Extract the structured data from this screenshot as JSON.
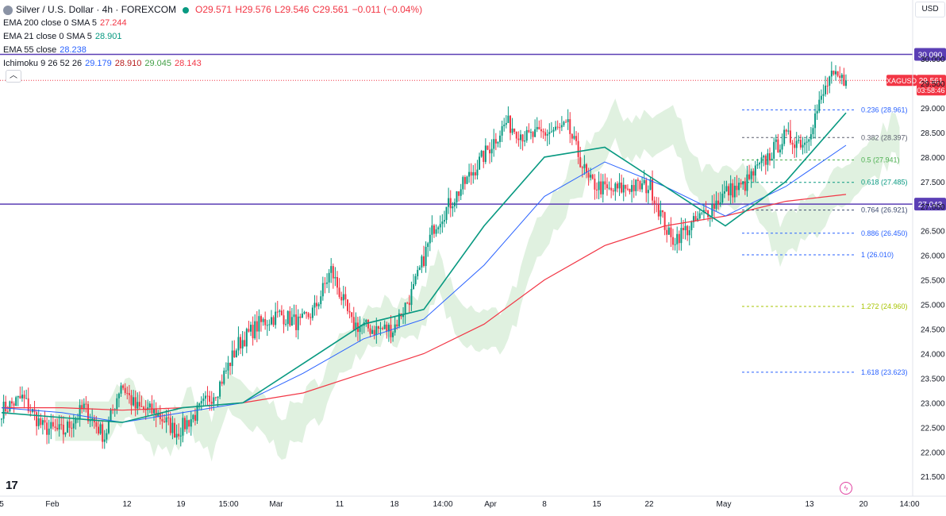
{
  "header": {
    "symbol_title": "Silver / U.S. Dollar · 4h · FOREXCOM",
    "ohlc": {
      "o": "O29.571",
      "h": "H29.576",
      "l": "L29.546",
      "c": "C29.561",
      "chg": "−0.011 (−0.04%)"
    },
    "indicators": [
      {
        "label": "EMA 200 close 0 SMA 5",
        "values": [
          "27.244"
        ],
        "colors": [
          "#f23645"
        ]
      },
      {
        "label": "EMA 21 close 0 SMA 5",
        "values": [
          "28.901"
        ],
        "colors": [
          "#089981"
        ]
      },
      {
        "label": "EMA 55 close",
        "values": [
          "28.238"
        ],
        "colors": [
          "#2962ff"
        ]
      },
      {
        "label": "Ichimoku 9 26 52 26",
        "values": [
          "29.179",
          "28.910",
          "29.045",
          "28.143"
        ],
        "colors": [
          "#2962ff",
          "#b71c1c",
          "#43a047",
          "#f23645"
        ]
      }
    ]
  },
  "currency_button": "USD",
  "collapse_icon": "chevron-up-icon",
  "price_axis": {
    "ticks": [
      "30.000",
      "29.500",
      "29.000",
      "28.500",
      "28.000",
      "27.500",
      "27.000",
      "26.500",
      "26.000",
      "25.500",
      "25.000",
      "24.500",
      "24.000",
      "23.500",
      "23.000",
      "22.500",
      "22.000",
      "21.500"
    ],
    "hline_labels": [
      {
        "text": "30.090",
        "value": 30.09
      },
      {
        "text": "27.043",
        "value": 27.043
      }
    ],
    "last_price": {
      "symbol": "XAGUSD",
      "price": "29.561",
      "countdown": "03:58:46",
      "value": 29.561
    }
  },
  "time_axis": {
    "labels": [
      "5",
      "Feb",
      "12",
      "19",
      "15:00",
      "Mar",
      "11",
      "18",
      "14:00",
      "Apr",
      "8",
      "15",
      "22",
      "May",
      "13",
      "20",
      "14:00"
    ]
  },
  "fib_levels": [
    {
      "label": "0.236 (28.961)",
      "value": 28.961,
      "color": "#2962ff"
    },
    {
      "label": "0.382 (28.397)",
      "value": 28.397,
      "color": "#5b5f6e"
    },
    {
      "label": "0.5 (27.941)",
      "value": 27.941,
      "color": "#4caf50"
    },
    {
      "label": "0.618 (27.485)",
      "value": 27.485,
      "color": "#089981"
    },
    {
      "label": "0.764 (26.921)",
      "value": 26.921,
      "color": "#3c4a6e"
    },
    {
      "label": "0.886 (26.450)",
      "value": 26.45,
      "color": "#2962ff"
    },
    {
      "label": "1 (26.010)",
      "value": 26.01,
      "color": "#2962ff"
    },
    {
      "label": "1.272 (24.960)",
      "value": 24.96,
      "color": "#a7c400"
    },
    {
      "label": "1.618 (23.623)",
      "value": 23.623,
      "color": "#2962ff"
    }
  ],
  "chart_data": {
    "type": "candlestick",
    "symbol": "XAGUSD",
    "interval": "4h",
    "ylim": [
      21.1,
      30.55
    ],
    "key_points": {
      "x_index": [
        0,
        10,
        20,
        30,
        40,
        50,
        58,
        65,
        75,
        85,
        95,
        105,
        115,
        125,
        135,
        145,
        152,
        160,
        170,
        180,
        190,
        200,
        210,
        222,
        232,
        245,
        255,
        265,
        275,
        285,
        295,
        305,
        315,
        325,
        335,
        345,
        352,
        360,
        370,
        380,
        390,
        402,
        410,
        420,
        430,
        440,
        450,
        460,
        470
      ],
      "close": [
        22.85,
        23.1,
        22.5,
        22.4,
        22.9,
        22.3,
        23.4,
        22.9,
        22.8,
        22.4,
        22.8,
        23.3,
        24.2,
        24.6,
        24.8,
        24.6,
        24.9,
        25.7,
        24.6,
        24.5,
        24.5,
        25.3,
        26.6,
        27.3,
        27.9,
        28.7,
        28.4,
        28.5,
        28.6,
        27.5,
        27.3,
        27.4,
        27.4,
        26.3,
        26.6,
        27.0,
        27.3,
        27.4,
        27.9,
        28.4,
        28.3,
        29.6,
        29.56,
        null,
        null,
        null,
        null,
        null,
        null
      ]
    },
    "ema200": [
      22.9,
      22.9,
      22.85,
      22.9,
      23.0,
      23.2,
      23.6,
      24.0,
      24.6,
      25.5,
      26.2,
      26.6,
      26.8,
      27.1,
      27.24
    ],
    "ema21": [
      22.8,
      22.7,
      22.6,
      22.9,
      23.0,
      23.8,
      24.6,
      24.9,
      26.6,
      28.0,
      28.2,
      27.4,
      26.6,
      27.5,
      28.9
    ],
    "ema55": [
      22.9,
      22.8,
      22.6,
      22.8,
      23.0,
      23.6,
      24.3,
      24.7,
      25.8,
      27.2,
      27.9,
      27.4,
      26.8,
      27.4,
      28.24
    ]
  }
}
